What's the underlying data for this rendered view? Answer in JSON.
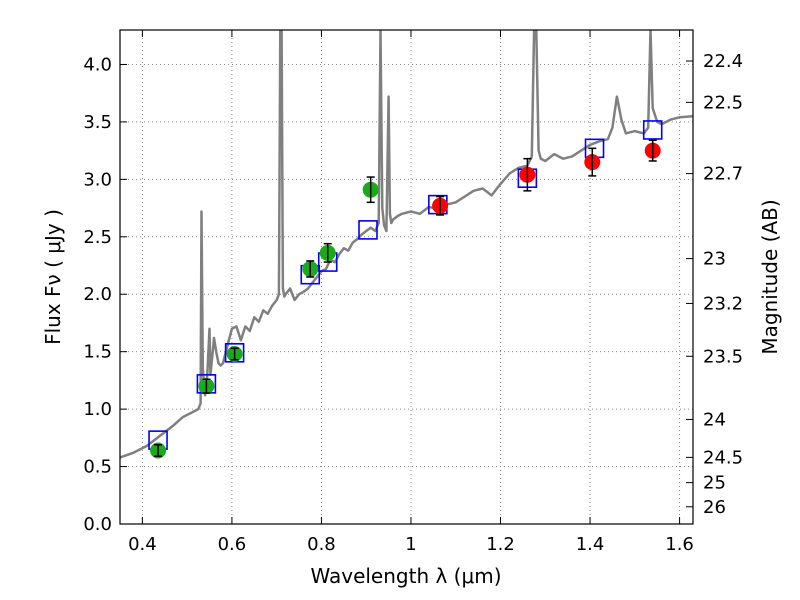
{
  "chart_data": {
    "type": "scatter",
    "xlabel": "Wavelength  λ (μm)",
    "ylabel": "Flux  Fν  ( μJy )",
    "y2label": "Magnitude (AB)",
    "xlim": [
      0.35,
      1.63
    ],
    "ylim": [
      0.0,
      4.3
    ],
    "grid": true,
    "x_ticks": [
      0.4,
      0.6,
      0.8,
      1.0,
      1.2,
      1.4,
      1.6
    ],
    "x_tick_labels": [
      "0.4",
      "0.6",
      "0.8",
      "1",
      "1.2",
      "1.4",
      "1.6"
    ],
    "y_ticks": [
      0.0,
      0.5,
      1.0,
      1.5,
      2.0,
      2.5,
      3.0,
      3.5,
      4.0
    ],
    "y_tick_labels": [
      "0.0",
      "0.5",
      "1.0",
      "1.5",
      "2.0",
      "2.5",
      "3.0",
      "3.5",
      "4.0"
    ],
    "mag_ticks": [
      {
        "label": "22.4",
        "flux": 4.03
      },
      {
        "label": "22.5",
        "flux": 3.67
      },
      {
        "label": "22.7",
        "flux": 3.05
      },
      {
        "label": "23",
        "flux": 2.31
      },
      {
        "label": "23.2",
        "flux": 1.92
      },
      {
        "label": "23.5",
        "flux": 1.46
      },
      {
        "label": "24",
        "flux": 0.91
      },
      {
        "label": "24.5",
        "flux": 0.58
      },
      {
        "label": "25",
        "flux": 0.36
      },
      {
        "label": "26",
        "flux": 0.15
      }
    ],
    "series": [
      {
        "kind": "spectrum",
        "color": "#808080",
        "x": [
          0.35,
          0.38,
          0.41,
          0.43,
          0.45,
          0.47,
          0.49,
          0.51,
          0.525,
          0.53,
          0.532,
          0.535,
          0.54,
          0.545,
          0.55,
          0.552,
          0.556,
          0.56,
          0.565,
          0.57,
          0.575,
          0.58,
          0.59,
          0.6,
          0.61,
          0.62,
          0.63,
          0.64,
          0.65,
          0.66,
          0.67,
          0.68,
          0.69,
          0.7,
          0.705,
          0.708,
          0.711,
          0.714,
          0.717,
          0.72,
          0.73,
          0.74,
          0.75,
          0.76,
          0.77,
          0.78,
          0.79,
          0.8,
          0.81,
          0.82,
          0.83,
          0.84,
          0.85,
          0.86,
          0.87,
          0.88,
          0.89,
          0.9,
          0.91,
          0.92,
          0.928,
          0.932,
          0.936,
          0.94,
          0.945,
          0.95,
          0.953,
          0.956,
          0.96,
          0.97,
          0.98,
          1.0,
          1.02,
          1.04,
          1.06,
          1.08,
          1.1,
          1.12,
          1.14,
          1.16,
          1.18,
          1.2,
          1.22,
          1.24,
          1.26,
          1.27,
          1.275,
          1.28,
          1.285,
          1.29,
          1.3,
          1.32,
          1.34,
          1.36,
          1.38,
          1.4,
          1.42,
          1.44,
          1.45,
          1.46,
          1.47,
          1.48,
          1.5,
          1.52,
          1.53,
          1.535,
          1.54,
          1.55,
          1.56,
          1.58,
          1.6,
          1.63
        ],
        "y": [
          0.58,
          0.62,
          0.68,
          0.74,
          0.8,
          0.86,
          0.93,
          0.97,
          1.0,
          1.05,
          2.72,
          1.35,
          1.12,
          1.3,
          1.7,
          1.3,
          1.45,
          1.62,
          1.5,
          1.4,
          1.38,
          1.4,
          1.55,
          1.7,
          1.72,
          1.6,
          1.72,
          1.68,
          1.8,
          1.76,
          1.86,
          1.83,
          1.9,
          1.95,
          2.0,
          4.3,
          4.3,
          2.05,
          1.98,
          2.0,
          2.05,
          1.95,
          2.0,
          2.02,
          2.05,
          2.1,
          2.15,
          2.2,
          2.22,
          2.3,
          2.28,
          2.35,
          2.4,
          2.38,
          2.45,
          2.48,
          2.52,
          2.55,
          2.58,
          2.55,
          2.62,
          4.3,
          2.75,
          2.6,
          2.55,
          3.72,
          2.7,
          2.62,
          2.65,
          2.68,
          2.7,
          2.72,
          2.7,
          2.76,
          2.74,
          2.78,
          2.8,
          2.85,
          2.9,
          2.92,
          2.86,
          2.96,
          3.05,
          3.1,
          3.12,
          3.2,
          4.3,
          4.3,
          3.25,
          3.18,
          3.16,
          3.22,
          3.18,
          3.2,
          3.25,
          3.3,
          3.33,
          3.35,
          3.45,
          3.72,
          3.52,
          3.4,
          3.42,
          3.4,
          3.45,
          4.3,
          3.62,
          3.5,
          3.48,
          3.52,
          3.54,
          3.55
        ]
      },
      {
        "kind": "model_photometry",
        "marker": "open-square",
        "color": "#0000ff",
        "x": [
          0.435,
          0.543,
          0.606,
          0.775,
          0.814,
          0.904,
          1.06,
          1.26,
          1.41,
          1.54
        ],
        "y": [
          0.73,
          1.22,
          1.49,
          2.17,
          2.28,
          2.56,
          2.78,
          3.01,
          3.27,
          3.43
        ]
      },
      {
        "kind": "observed",
        "marker": "filled-circle",
        "color": "#1aaa1a",
        "x": [
          0.435,
          0.543,
          0.606,
          0.775,
          0.814,
          0.91
        ],
        "y": [
          0.64,
          1.2,
          1.48,
          2.22,
          2.36,
          2.91
        ],
        "err": [
          0.05,
          0.06,
          0.05,
          0.07,
          0.08,
          0.11
        ]
      },
      {
        "kind": "observed",
        "marker": "filled-circle",
        "color": "#ff0000",
        "x": [
          1.065,
          1.26,
          1.405,
          1.54
        ],
        "y": [
          2.77,
          3.04,
          3.15,
          3.25
        ],
        "err": [
          0.08,
          0.14,
          0.12,
          0.09
        ]
      }
    ]
  }
}
